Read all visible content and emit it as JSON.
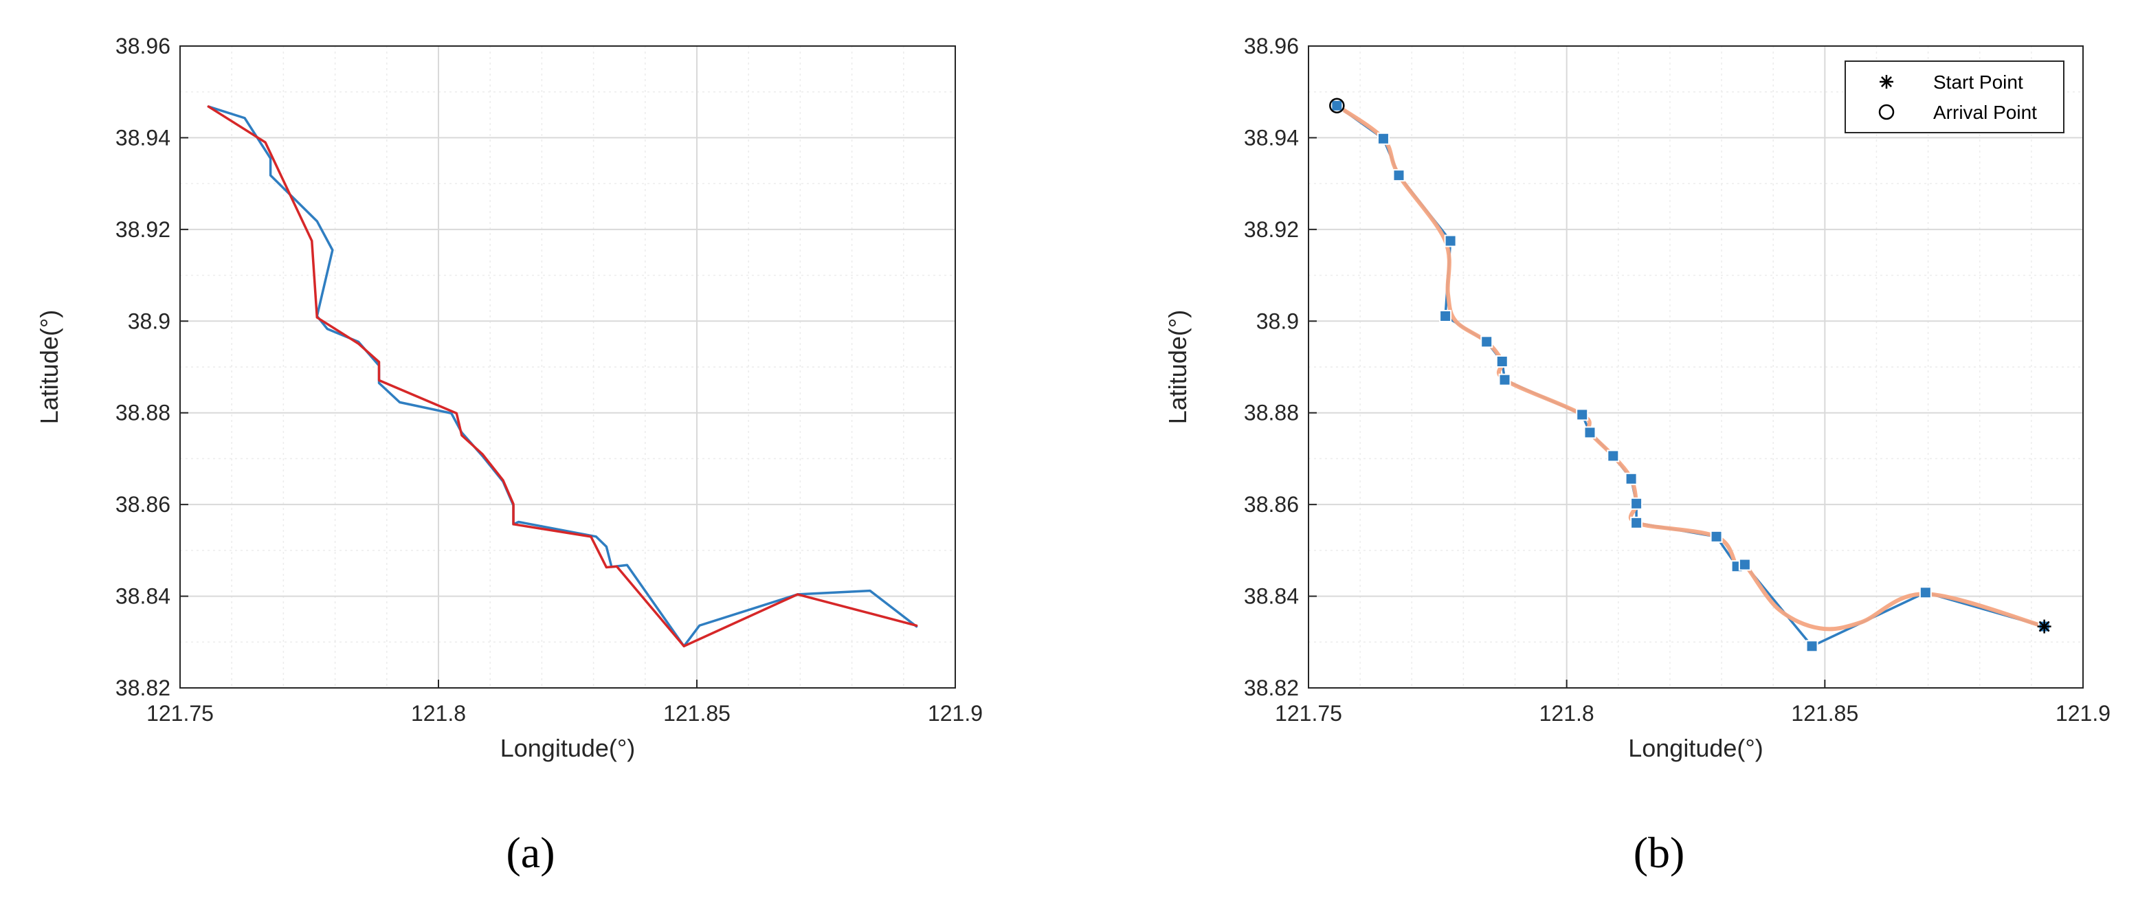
{
  "panel_labels": [
    "(a)",
    "(b)"
  ],
  "colors": {
    "blue": "#2f7ec1",
    "red": "#d62728",
    "salmon": "#f4a582",
    "grid": "#d9d9d9",
    "axis": "#262626"
  },
  "chart_data": [
    {
      "type": "line",
      "panel": "(a)",
      "xlabel": "Longitude(°)",
      "ylabel": "Latitude(°)",
      "xlim": [
        121.75,
        121.9
      ],
      "ylim": [
        38.82,
        38.96
      ],
      "xticks": [
        121.75,
        121.8,
        121.85,
        121.9
      ],
      "xtick_labels": [
        "121.75",
        "121.8",
        "121.85",
        "121.9"
      ],
      "yticks": [
        38.82,
        38.84,
        38.86,
        38.88,
        38.9,
        38.92,
        38.94,
        38.96
      ],
      "ytick_labels": [
        "38.82",
        "38.84",
        "38.86",
        "38.88",
        "38.9",
        "38.92",
        "38.94",
        "38.96"
      ],
      "grid": true,
      "minor_grid": true,
      "series": [
        {
          "color": "#2f7ec1",
          "x": [
            121.7555,
            121.7625,
            121.7675,
            121.7675,
            121.7765,
            121.7795,
            121.7765,
            121.7785,
            121.7845,
            121.7885,
            121.7885,
            121.7925,
            121.8025,
            121.8045,
            121.8085,
            121.8125,
            121.8145,
            121.8145,
            121.8155,
            121.8305,
            121.8325,
            121.8335,
            121.8365,
            121.8475,
            121.8505,
            121.8695,
            121.8835,
            121.8925
          ],
          "y": [
            38.9468,
            38.9443,
            38.9355,
            38.9318,
            38.9218,
            38.9155,
            38.9011,
            38.8983,
            38.8955,
            38.8903,
            38.8865,
            38.8823,
            38.8799,
            38.8757,
            38.8706,
            38.865,
            38.8598,
            38.8557,
            38.8562,
            38.853,
            38.8508,
            38.8464,
            38.8468,
            38.8291,
            38.8336,
            38.8404,
            38.8412,
            38.8334
          ]
        },
        {
          "color": "#d62728",
          "x": [
            121.7555,
            121.7665,
            121.7755,
            121.7765,
            121.7845,
            121.7885,
            121.7885,
            121.8035,
            121.8045,
            121.8085,
            121.8125,
            121.8145,
            121.8145,
            121.8295,
            121.8325,
            121.8345,
            121.8475,
            121.8695,
            121.8925
          ],
          "y": [
            38.9468,
            38.939,
            38.9175,
            38.9008,
            38.8951,
            38.8911,
            38.8871,
            38.8799,
            38.8751,
            38.871,
            38.8653,
            38.8601,
            38.8557,
            38.853,
            38.8463,
            38.8465,
            38.8291,
            38.8404,
            38.8336
          ]
        }
      ]
    },
    {
      "type": "line",
      "panel": "(b)",
      "xlabel": "Longitude(°)",
      "ylabel": "Latitude(°)",
      "xlim": [
        121.75,
        121.9
      ],
      "ylim": [
        38.82,
        38.96
      ],
      "xticks": [
        121.75,
        121.8,
        121.85,
        121.9
      ],
      "xtick_labels": [
        "121.75",
        "121.8",
        "121.85",
        "121.9"
      ],
      "yticks": [
        38.82,
        38.84,
        38.86,
        38.88,
        38.9,
        38.92,
        38.94,
        38.96
      ],
      "ytick_labels": [
        "38.82",
        "38.84",
        "38.86",
        "38.88",
        "38.9",
        "38.92",
        "38.94",
        "38.96"
      ],
      "grid": true,
      "minor_grid": true,
      "legend_position": "top-right",
      "legend": [
        {
          "label": "Start Point",
          "marker": "asterisk"
        },
        {
          "label": "Arrival Point",
          "marker": "circle"
        }
      ],
      "series": [
        {
          "color": "#2f7ec1",
          "marker": "square",
          "x": [
            121.7555,
            121.7645,
            121.7675,
            121.7775,
            121.7765,
            121.7845,
            121.7875,
            121.788,
            121.803,
            121.8045,
            121.809,
            121.8125,
            121.8135,
            121.8135,
            121.829,
            121.833,
            121.8345,
            121.8475,
            121.8695,
            121.8925
          ],
          "y": [
            38.947,
            38.9398,
            38.9318,
            38.9175,
            38.9011,
            38.8955,
            38.8912,
            38.8872,
            38.8796,
            38.8757,
            38.8706,
            38.8656,
            38.8602,
            38.856,
            38.853,
            38.8465,
            38.8469,
            38.8291,
            38.8408,
            38.8334
          ]
        },
        {
          "color": "#f4a582",
          "smooth": true,
          "x": [
            121.7555,
            121.7645,
            121.7675,
            121.7765,
            121.777,
            121.7785,
            121.7845,
            121.7875,
            121.788,
            121.803,
            121.8045,
            121.809,
            121.8125,
            121.8135,
            121.8135,
            121.829,
            121.833,
            121.8345,
            121.841,
            121.849,
            121.857,
            121.8695,
            121.8925
          ],
          "y": [
            38.947,
            38.9398,
            38.9318,
            38.9175,
            38.906,
            38.9,
            38.8955,
            38.8912,
            38.8872,
            38.8796,
            38.8757,
            38.8706,
            38.8656,
            38.8602,
            38.856,
            38.853,
            38.8465,
            38.8469,
            38.8372,
            38.833,
            38.8343,
            38.8405,
            38.8334
          ]
        }
      ],
      "start_point": {
        "x": 121.8925,
        "y": 38.8334
      },
      "arrival_point": {
        "x": 121.7555,
        "y": 38.947
      }
    }
  ]
}
